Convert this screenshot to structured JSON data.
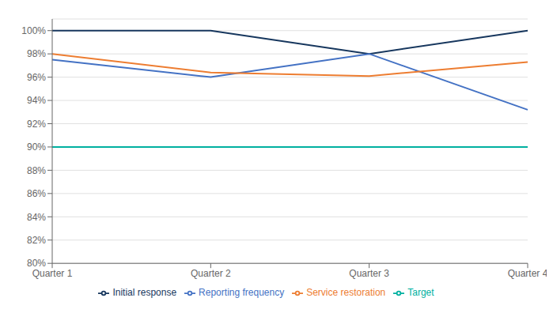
{
  "chart_data": {
    "type": "line",
    "categories": [
      "Quarter 1",
      "Quarter 2",
      "Quarter 3",
      "Quarter 4"
    ],
    "series": [
      {
        "name": "Initial response",
        "color": "#17375E",
        "values": [
          100,
          100,
          98,
          100
        ]
      },
      {
        "name": "Reporting frequency",
        "color": "#4472C4",
        "values": [
          97.5,
          96,
          98,
          93.2
        ]
      },
      {
        "name": "Service restoration",
        "color": "#ED7D31",
        "values": [
          98,
          96.4,
          96.1,
          97.3
        ]
      },
      {
        "name": "Target",
        "color": "#00B0A0",
        "values": [
          90,
          90,
          90,
          90
        ]
      }
    ],
    "ylim": [
      80,
      101
    ],
    "yticks": [
      {
        "value": 80,
        "label": "80%"
      },
      {
        "value": 82,
        "label": "82%"
      },
      {
        "value": 84,
        "label": "84%"
      },
      {
        "value": 86,
        "label": "86%"
      },
      {
        "value": 88,
        "label": "88%"
      },
      {
        "value": 90,
        "label": "90%"
      },
      {
        "value": 92,
        "label": "92%"
      },
      {
        "value": 94,
        "label": "94%"
      },
      {
        "value": 96,
        "label": "96%"
      },
      {
        "value": 98,
        "label": "98%"
      },
      {
        "value": 100,
        "label": "100%"
      }
    ],
    "grid": true,
    "legend": "bottom"
  }
}
